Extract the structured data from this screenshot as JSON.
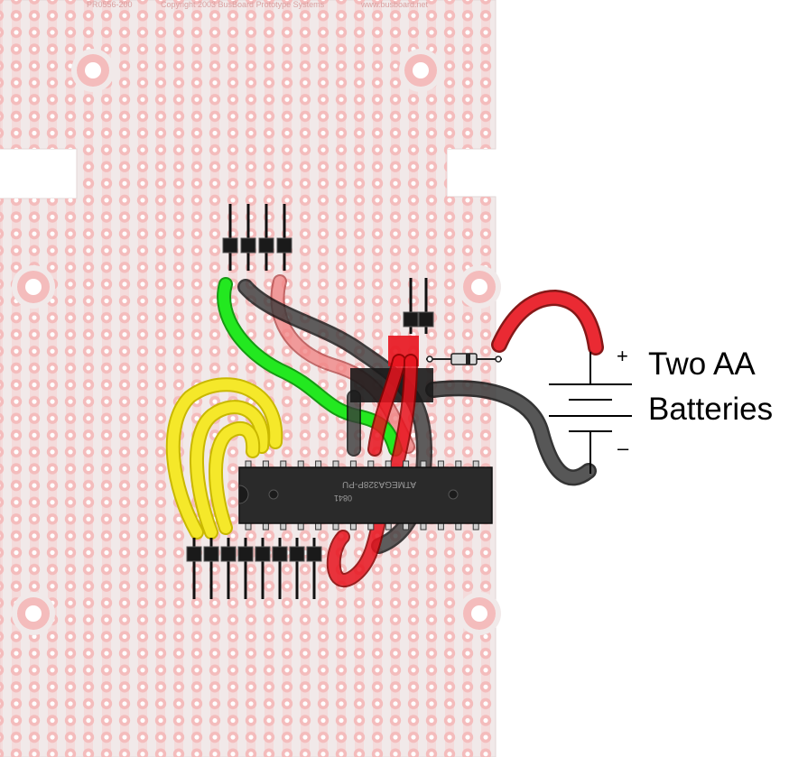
{
  "board": {
    "part_number": "PR0556-200",
    "copyright": "Copyright 2003 BusBoard Prototype Systems",
    "url": "www.busboard.net"
  },
  "chip": {
    "line1": "ATMEGA328P-PU",
    "line2": "0841"
  },
  "battery": {
    "label_line1": "Two AA",
    "label_line2": "Batteries",
    "plus": "+",
    "minus": "–"
  },
  "colors": {
    "board": "#f1e9e9",
    "pad": "#f4bcbc",
    "pad_hole": "#ffffff",
    "chip": "#2a2a2a",
    "wire_red": "#e8141e",
    "wire_black": "#222222",
    "wire_green": "#23e820",
    "wire_yellow": "#f5e82a",
    "wire_pink": "#f08080"
  }
}
